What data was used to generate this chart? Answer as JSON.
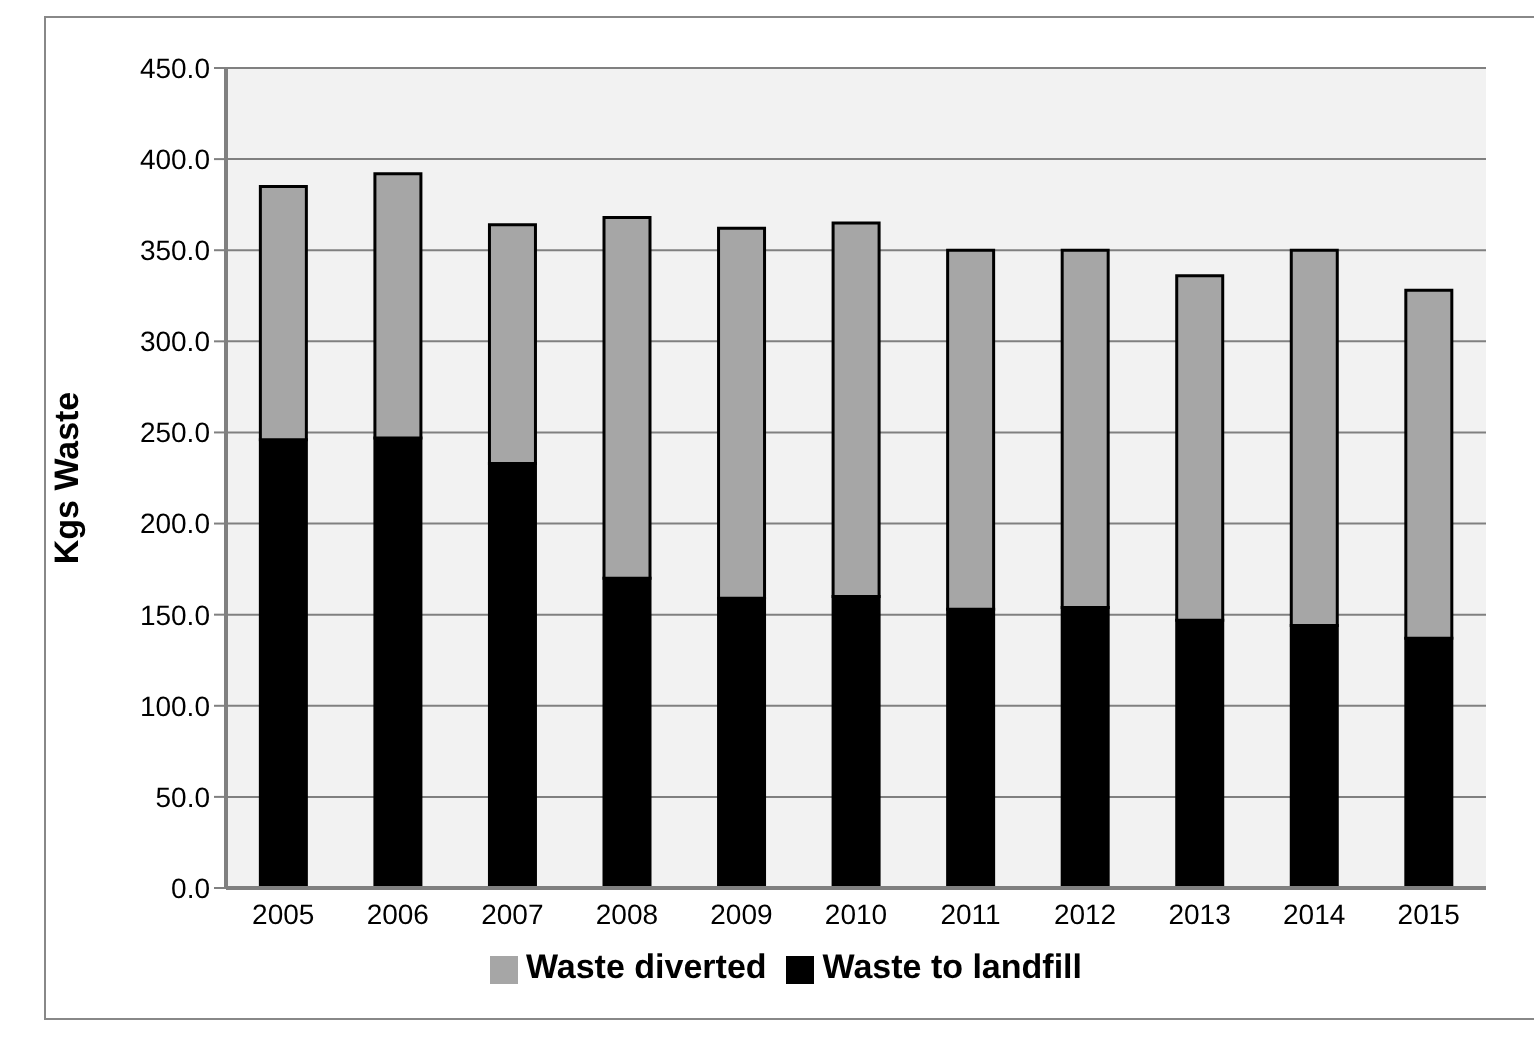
{
  "chart_data": {
    "type": "bar",
    "stacked": true,
    "ylabel": "Kgs Waste",
    "categories": [
      "2005",
      "2006",
      "2007",
      "2008",
      "2009",
      "2010",
      "2011",
      "2012",
      "2013",
      "2014",
      "2015"
    ],
    "series": [
      {
        "name": "Waste to landfill",
        "color": "#000000",
        "values": [
          246,
          247,
          233,
          170,
          159,
          160,
          153,
          154,
          147,
          144,
          137
        ]
      },
      {
        "name": "Waste diverted",
        "color": "#a6a6a6",
        "values": [
          139,
          145,
          131,
          198,
          203,
          205,
          197,
          196,
          189,
          206,
          191
        ]
      }
    ],
    "ylim": [
      0,
      450
    ],
    "yticks": [
      {
        "value": 0,
        "label": "0.0"
      },
      {
        "value": 50,
        "label": "50.0"
      },
      {
        "value": 100,
        "label": "100.0"
      },
      {
        "value": 150,
        "label": "150.0"
      },
      {
        "value": 200,
        "label": "200.0"
      },
      {
        "value": 250,
        "label": "250.0"
      },
      {
        "value": 300,
        "label": "300.0"
      },
      {
        "value": 350,
        "label": "350.0"
      },
      {
        "value": 400,
        "label": "400.0"
      },
      {
        "value": 450,
        "label": "450.0"
      }
    ],
    "grid": "y",
    "legend": "bottom"
  }
}
